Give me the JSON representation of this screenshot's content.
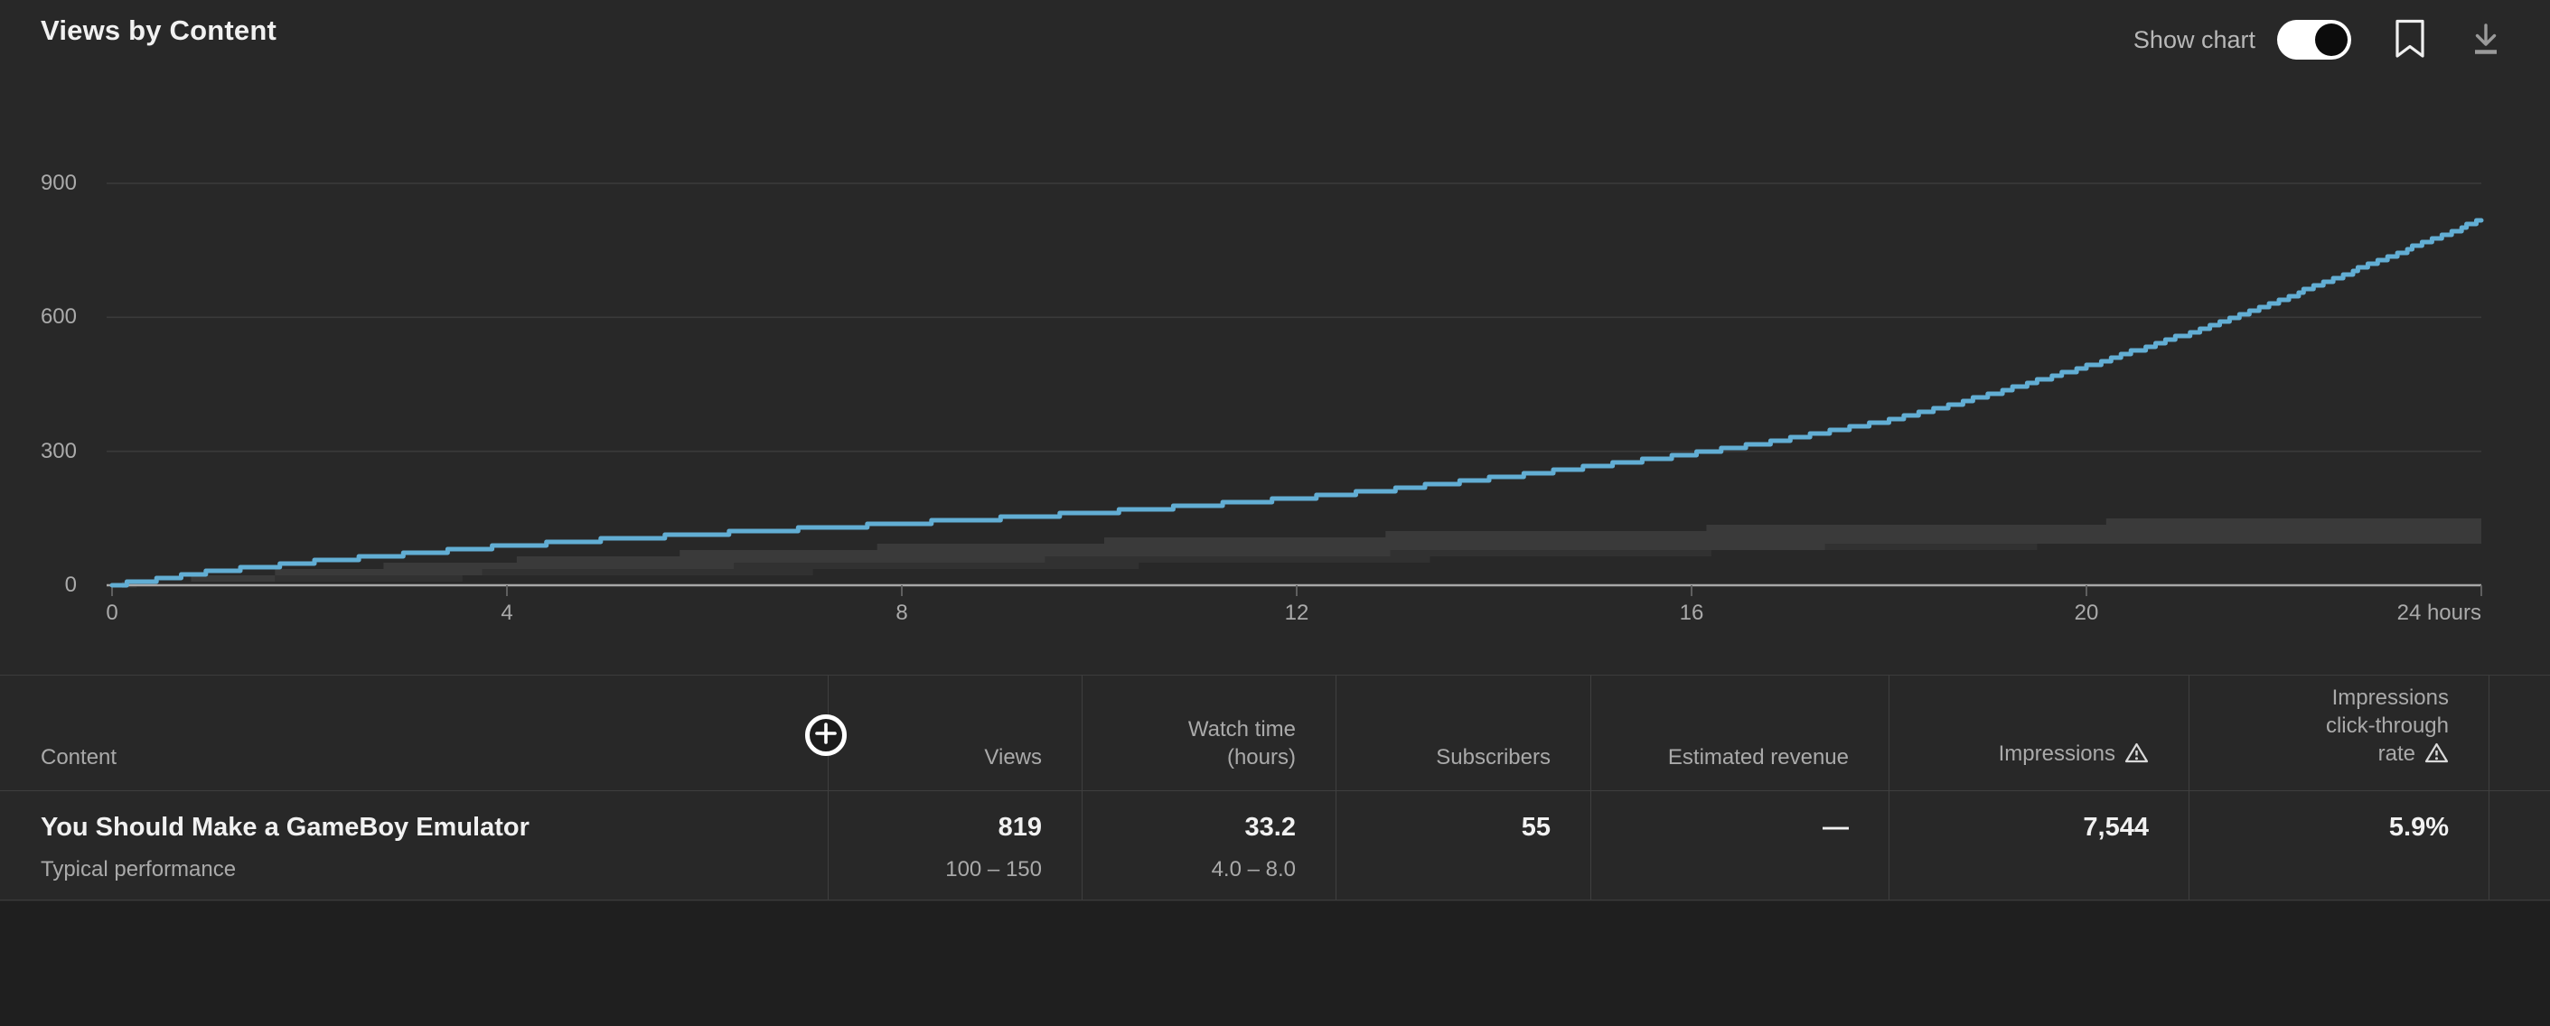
{
  "header": {
    "title": "Views by Content",
    "show_chart_label": "Show chart",
    "show_chart_on": true
  },
  "icons": {
    "toggle": "show-chart-toggle",
    "bookmark": "bookmark-icon",
    "download": "download-icon",
    "add_metric": "plus-circle-icon",
    "warning": "warning-triangle-icon"
  },
  "chart_data": {
    "type": "line",
    "title": "Views by Content",
    "xlabel": "hours",
    "ylabel": "Views",
    "x_ticks": [
      {
        "hour": 0,
        "label": "0"
      },
      {
        "hour": 4,
        "label": "4"
      },
      {
        "hour": 8,
        "label": "8"
      },
      {
        "hour": 12,
        "label": "12"
      },
      {
        "hour": 16,
        "label": "16"
      },
      {
        "hour": 20,
        "label": "20"
      },
      {
        "hour": 24,
        "label": "24 hours"
      }
    ],
    "y_ticks": [
      0,
      300,
      600,
      900
    ],
    "xlim": [
      0,
      24
    ],
    "ylim": [
      0,
      900
    ],
    "grid": true,
    "hours": [
      0,
      1,
      2,
      3,
      4,
      5,
      6,
      7,
      8,
      9,
      10,
      11,
      12,
      13,
      14,
      15,
      16,
      17,
      18,
      19,
      20,
      21,
      22,
      23,
      24
    ],
    "series": [
      {
        "name": "Views",
        "color": "#62aed4",
        "values": [
          0,
          30,
          52,
          70,
          88,
          102,
          115,
          126,
          138,
          150,
          163,
          178,
          195,
          215,
          240,
          266,
          294,
          328,
          370,
          425,
          490,
          562,
          642,
          730,
          819
        ]
      }
    ],
    "band": {
      "name": "Typical performance range",
      "final_range": "100 – 150",
      "upper": [
        0,
        20,
        35,
        47,
        57,
        66,
        74,
        81,
        88,
        94,
        100,
        105,
        110,
        115,
        120,
        124,
        128,
        132,
        136,
        139,
        142,
        145,
        147,
        149,
        150
      ],
      "mid": [
        0,
        10,
        18,
        25,
        31,
        37,
        42,
        47,
        52,
        56,
        60,
        64,
        68,
        72,
        76,
        79,
        82,
        85,
        88,
        91,
        93,
        95,
        97,
        99,
        100
      ],
      "lower": [
        0,
        5,
        9,
        13,
        17,
        21,
        25,
        29,
        33,
        37,
        42,
        46,
        51,
        56,
        61,
        66,
        71,
        75,
        80,
        84,
        88,
        91,
        94,
        97,
        100
      ],
      "color_upper": "#3a3a3a",
      "color_lower": "#313131"
    },
    "axis_color": "#a8a8a8",
    "grid_color": "#3a3a3a",
    "tick_color": "#5f5f5f"
  },
  "table": {
    "columns": [
      {
        "key": "content",
        "label_lines": [
          "Content"
        ],
        "warning_icon": false
      },
      {
        "key": "views",
        "label_lines": [
          "Views"
        ],
        "warning_icon": false
      },
      {
        "key": "watch_time",
        "label_lines": [
          "Watch time",
          "(hours)"
        ],
        "warning_icon": false
      },
      {
        "key": "subscribers",
        "label_lines": [
          "Subscribers"
        ],
        "warning_icon": false
      },
      {
        "key": "estimated_revenue",
        "label_lines": [
          "Estimated revenue"
        ],
        "warning_icon": false
      },
      {
        "key": "impressions",
        "label_lines": [
          "Impressions"
        ],
        "warning_icon": true
      },
      {
        "key": "ctr",
        "label_lines": [
          "Impressions",
          "click-through",
          "rate"
        ],
        "warning_icon": true
      }
    ],
    "rows": [
      {
        "title": "You Should Make a GameBoy Emulator",
        "subtitle": "Typical performance",
        "cells": {
          "views": {
            "value": "819",
            "secondary": "100 – 150"
          },
          "watch_time": {
            "value": "33.2",
            "secondary": "4.0 – 8.0"
          },
          "subscribers": {
            "value": "55",
            "secondary": ""
          },
          "estimated_revenue": {
            "value": "—",
            "secondary": ""
          },
          "impressions": {
            "value": "7,544",
            "secondary": ""
          },
          "ctr": {
            "value": "5.9%",
            "secondary": ""
          }
        }
      }
    ]
  }
}
